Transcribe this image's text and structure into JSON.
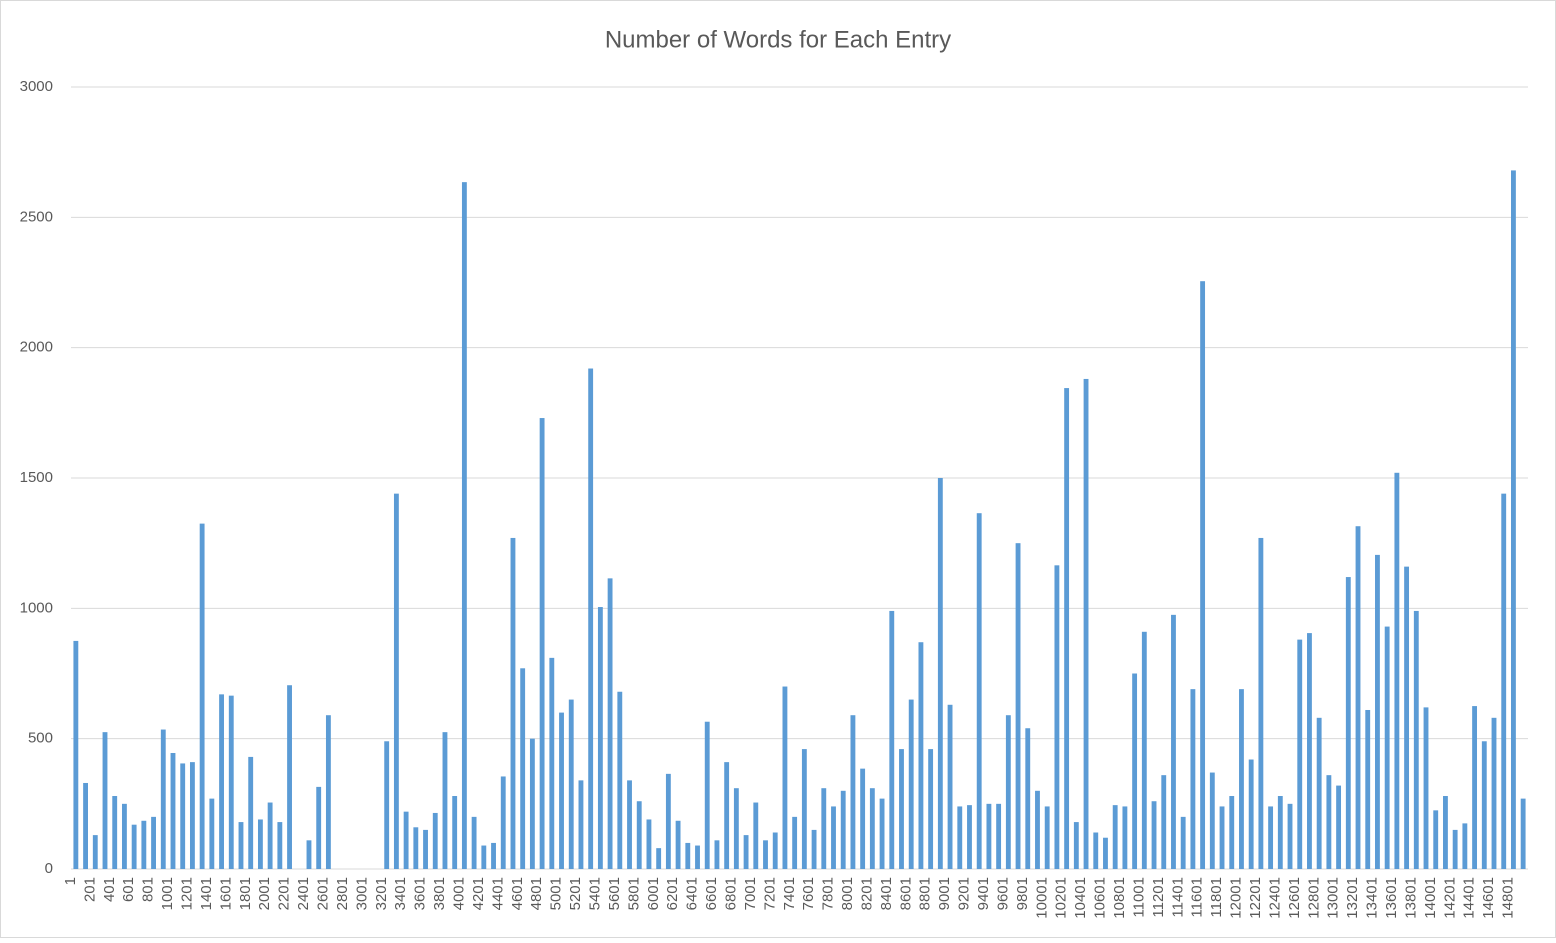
{
  "chart_data": {
    "type": "bar",
    "title": "Number of Words for Each Entry",
    "categories": [
      "1",
      null,
      "201",
      null,
      "401",
      null,
      "601",
      null,
      "801",
      null,
      "1001",
      null,
      "1201",
      null,
      "1401",
      null,
      "1601",
      null,
      "1801",
      null,
      "2001",
      null,
      "2201",
      null,
      "2401",
      null,
      "2601",
      null,
      "2801",
      null,
      "3001",
      null,
      "3201",
      null,
      "3401",
      null,
      "3601",
      null,
      "3801",
      null,
      "4001",
      null,
      "4201",
      null,
      "4401",
      null,
      "4601",
      null,
      "4801",
      null,
      "5001",
      null,
      "5201",
      null,
      "5401",
      null,
      "5601",
      null,
      "5801",
      null,
      "6001",
      null,
      "6201",
      null,
      "6401",
      null,
      "6601",
      null,
      "6801",
      null,
      "7001",
      null,
      "7201",
      null,
      "7401",
      null,
      "7601",
      null,
      "7801",
      null,
      "8001",
      null,
      "8201",
      null,
      "8401",
      null,
      "8601",
      null,
      "8801",
      null,
      "9001",
      null,
      "9201",
      null,
      "9401",
      null,
      "9601",
      null,
      "9801",
      null,
      "10001",
      null,
      "10201",
      null,
      "10401",
      null,
      "10601",
      null,
      "10801",
      null,
      "11001",
      null,
      "11201",
      null,
      "11401",
      null,
      "11601",
      null,
      "11801",
      null,
      "12001",
      null,
      "12201",
      null,
      "12401",
      null,
      "12601",
      null,
      "12801",
      null,
      "13001",
      null,
      "13201",
      null,
      "13401",
      null,
      "13601",
      null,
      "13801",
      null,
      "14001",
      null,
      "14201",
      null,
      "14401",
      null,
      "14601",
      null,
      "14801",
      null
    ],
    "values": [
      875,
      330,
      130,
      525,
      280,
      250,
      170,
      185,
      200,
      535,
      445,
      405,
      410,
      1325,
      270,
      670,
      665,
      180,
      430,
      190,
      255,
      180,
      705,
      0,
      110,
      315,
      590,
      0,
      0,
      0,
      0,
      0,
      490,
      1440,
      220,
      160,
      150,
      215,
      525,
      280,
      2635,
      200,
      90,
      100,
      355,
      1270,
      770,
      500,
      1730,
      810,
      600,
      650,
      340,
      1920,
      1005,
      1115,
      680,
      340,
      260,
      190,
      80,
      365,
      185,
      100,
      90,
      565,
      110,
      410,
      310,
      130,
      255,
      110,
      140,
      700,
      200,
      460,
      150,
      310,
      240,
      300,
      590,
      385,
      310,
      270,
      990,
      460,
      650,
      870,
      460,
      1500,
      630,
      240,
      245,
      1365,
      250,
      250,
      590,
      1250,
      540,
      300,
      240,
      1165,
      1845,
      180,
      1880,
      140,
      120,
      245,
      240,
      750,
      910,
      260,
      360,
      975,
      200,
      690,
      2255,
      370,
      240,
      280,
      690,
      420,
      1270,
      240,
      280,
      250,
      880,
      905,
      580,
      360,
      320,
      1120,
      1315,
      610,
      1205,
      930,
      1520,
      1160,
      990,
      620,
      225,
      280,
      150,
      175,
      625,
      490,
      580,
      1440,
      2680,
      270
    ],
    "color": "#5b9bd5",
    "ylim": [
      0,
      3000
    ],
    "yticks": [
      0,
      500,
      1000,
      1500,
      2000,
      2500,
      3000
    ],
    "grid": true
  }
}
